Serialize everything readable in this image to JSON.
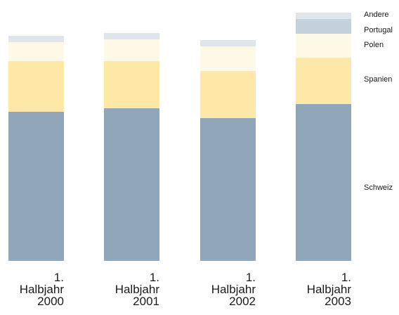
{
  "chart_data": {
    "type": "bar",
    "stacked": true,
    "categories": [
      [
        "1.",
        "Halbjahr",
        "2000"
      ],
      [
        "1.",
        "Halbjahr",
        "2001"
      ],
      [
        "1.",
        "Halbjahr",
        "2002"
      ],
      [
        "1.",
        "Halbjahr",
        "2003"
      ]
    ],
    "series": [
      {
        "name": "Schweiz",
        "color": "#91a7b9",
        "values": [
          212,
          217,
          203,
          223
        ]
      },
      {
        "name": "Spanien",
        "color": "#fde8a8",
        "values": [
          72,
          67,
          67,
          66
        ]
      },
      {
        "name": "Polen",
        "color": "#fef8e6",
        "values": [
          27,
          31,
          35,
          34
        ]
      },
      {
        "name": "Portugal",
        "color": "#c4d2dd",
        "values": [
          0,
          0,
          0,
          21
        ]
      },
      {
        "name": "Andere",
        "color": "#dfe5eb",
        "values": [
          9,
          9,
          9,
          9
        ]
      }
    ],
    "legend_position": "right, aligned with segments of last bar",
    "grid": false
  }
}
